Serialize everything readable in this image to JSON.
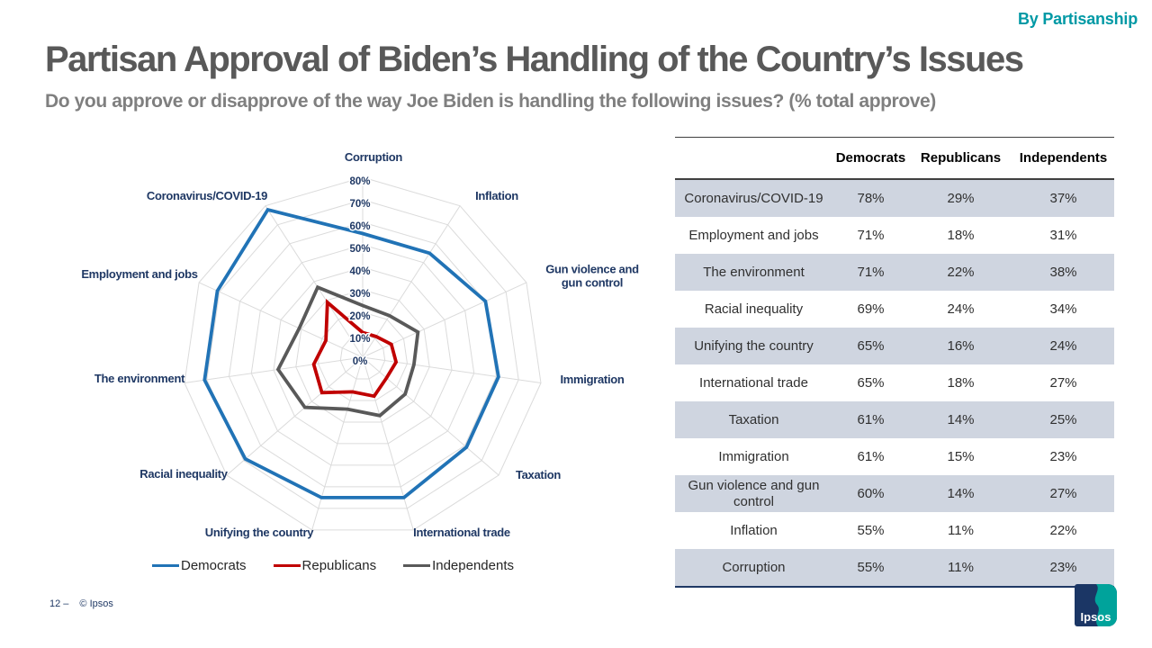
{
  "header": {
    "tag": "By Partisanship",
    "title": "Partisan Approval of Biden’s Handling of the Country’s Issues",
    "subtitle": "Do you approve or disapprove of the way Joe Biden is handling the following issues? (% total approve)"
  },
  "chart_data": {
    "type": "radar",
    "title": "",
    "categories": [
      "Corruption",
      "Inflation",
      "Gun violence and gun control",
      "Immigration",
      "Taxation",
      "International trade",
      "Unifying the country",
      "Racial inequality",
      "The environment",
      "Employment and jobs",
      "Coronavirus/COVID-19"
    ],
    "series": [
      {
        "name": "Democrats",
        "color": "#2173B6",
        "values": [
          55,
          55,
          60,
          61,
          61,
          65,
          65,
          69,
          71,
          71,
          78
        ]
      },
      {
        "name": "Republicans",
        "color": "#C00000",
        "values": [
          11,
          11,
          14,
          15,
          14,
          18,
          16,
          24,
          22,
          18,
          29
        ]
      },
      {
        "name": "Independents",
        "color": "#595959",
        "values": [
          23,
          22,
          27,
          23,
          25,
          27,
          24,
          34,
          38,
          31,
          37
        ]
      }
    ],
    "radial_axis": {
      "min": 0,
      "max": 80,
      "step": 10,
      "tick_labels": [
        "0%",
        "10%",
        "20%",
        "30%",
        "40%",
        "50%",
        "60%",
        "70%",
        "80%"
      ]
    },
    "label_line_breaks": {
      "Gun violence and gun control": [
        "Gun violence and",
        "gun control"
      ]
    },
    "grid": true,
    "legend_position": "bottom"
  },
  "table": {
    "columns": [
      "",
      "Democrats",
      "Republicans",
      "Independents"
    ],
    "rows": [
      {
        "label": "Coronavirus/COVID-19",
        "values": [
          "78%",
          "29%",
          "37%"
        ]
      },
      {
        "label": "Employment and jobs",
        "values": [
          "71%",
          "18%",
          "31%"
        ]
      },
      {
        "label": "The environment",
        "values": [
          "71%",
          "22%",
          "38%"
        ]
      },
      {
        "label": "Racial inequality",
        "values": [
          "69%",
          "24%",
          "34%"
        ]
      },
      {
        "label": "Unifying the country",
        "values": [
          "65%",
          "16%",
          "24%"
        ]
      },
      {
        "label": "International trade",
        "values": [
          "65%",
          "18%",
          "27%"
        ]
      },
      {
        "label": "Taxation",
        "values": [
          "61%",
          "14%",
          "25%"
        ]
      },
      {
        "label": "Immigration",
        "values": [
          "61%",
          "15%",
          "23%"
        ]
      },
      {
        "label": "Gun violence and gun control",
        "values": [
          "60%",
          "14%",
          "27%"
        ]
      },
      {
        "label": "Inflation",
        "values": [
          "55%",
          "11%",
          "22%"
        ]
      },
      {
        "label": "Corruption",
        "values": [
          "55%",
          "11%",
          "23%"
        ]
      }
    ]
  },
  "footer": {
    "page_number": "12 –",
    "copyright": "© Ipsos"
  },
  "logo": {
    "text": "Ipsos",
    "navy": "#1B3665",
    "teal": "#00A39B"
  },
  "colors": {
    "accent_teal": "#0099A5",
    "title_gray": "#595959",
    "subtitle_gray": "#7F7F7F",
    "label_navy": "#1F3864",
    "grid": "#DBDBDB",
    "row_shade": "#CFD5E0",
    "table_border_dark": "#404040",
    "table_border_navy": "#1F3864"
  }
}
